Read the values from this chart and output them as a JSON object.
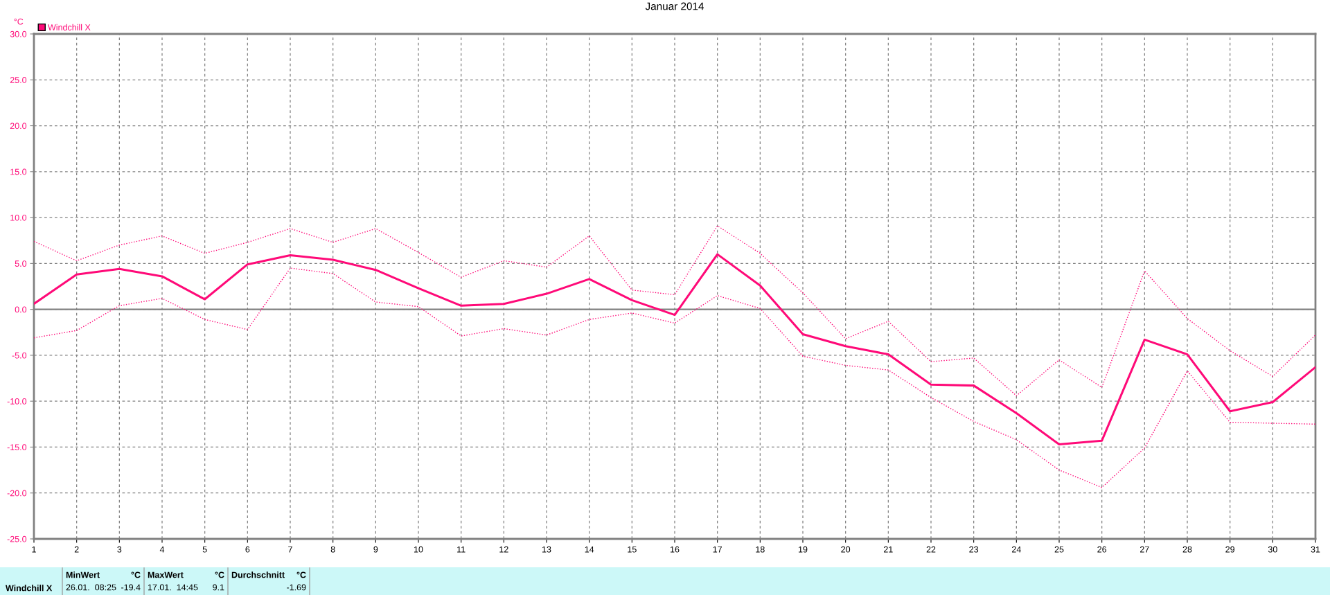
{
  "chart_data": {
    "type": "line",
    "title": "Januar 2014",
    "ylabel": "°C",
    "x": [
      1,
      2,
      3,
      4,
      5,
      6,
      7,
      8,
      9,
      10,
      11,
      12,
      13,
      14,
      15,
      16,
      17,
      18,
      19,
      20,
      21,
      22,
      23,
      24,
      25,
      26,
      27,
      28,
      29,
      30,
      31
    ],
    "series": [
      {
        "name": "Windchill X",
        "color": "#ff0a78",
        "line_style": "solid",
        "values": [
          0.6,
          3.8,
          4.4,
          3.6,
          1.1,
          4.9,
          5.9,
          5.4,
          4.3,
          2.3,
          0.4,
          0.6,
          1.7,
          3.3,
          1.0,
          -0.6,
          6.0,
          2.6,
          -2.7,
          -4.0,
          -4.9,
          -8.2,
          -8.3,
          -11.3,
          -14.7,
          -14.3,
          -3.3,
          -4.9,
          -11.1,
          -10.1,
          -6.3
        ]
      },
      {
        "color": "#ff0a78",
        "line_style": "dotted",
        "values": [
          7.4,
          5.3,
          7.0,
          8.0,
          6.1,
          7.3,
          8.8,
          7.3,
          8.8,
          6.2,
          3.5,
          5.3,
          4.6,
          8.0,
          2.1,
          1.6,
          9.1,
          6.1,
          1.8,
          -3.2,
          -1.3,
          -5.7,
          -5.3,
          -9.4,
          -5.5,
          -8.5,
          4.2,
          -1.0,
          -4.5,
          -7.3,
          -2.8
        ]
      },
      {
        "color": "#ff0a78",
        "line_style": "dotted",
        "values": [
          -3.1,
          -2.3,
          0.4,
          1.2,
          -1.1,
          -2.2,
          4.5,
          3.9,
          0.8,
          0.3,
          -2.9,
          -2.1,
          -2.8,
          -1.1,
          -0.4,
          -1.5,
          1.5,
          0.1,
          -5.1,
          -6.1,
          -6.6,
          -9.6,
          -12.2,
          -14.2,
          -17.5,
          -19.4,
          -15.1,
          -6.7,
          -12.3,
          -12.4,
          -12.5
        ]
      }
    ],
    "xlim": [
      1,
      31
    ],
    "xticks": [
      1,
      2,
      3,
      4,
      5,
      6,
      7,
      8,
      9,
      10,
      11,
      12,
      13,
      14,
      15,
      16,
      17,
      18,
      19,
      20,
      21,
      22,
      23,
      24,
      25,
      26,
      27,
      28,
      29,
      30,
      31
    ],
    "ylim": [
      -25,
      30
    ],
    "yticks": [
      {
        "value": -25,
        "label": "-25.0"
      },
      {
        "value": -20,
        "label": "-20.0"
      },
      {
        "value": -15,
        "label": "-15.0"
      },
      {
        "value": -10,
        "label": "-10.0"
      },
      {
        "value": -5,
        "label": "-5.0"
      },
      {
        "value": 0,
        "label": "0.0"
      },
      {
        "value": 5,
        "label": "5.0"
      },
      {
        "value": 10,
        "label": "10.0"
      },
      {
        "value": 15,
        "label": "15.0"
      },
      {
        "value": 20,
        "label": "20.0"
      },
      {
        "value": 25,
        "label": "25.0"
      },
      {
        "value": 30,
        "label": "30.0"
      }
    ],
    "ref_lines": [
      {
        "axis": "y",
        "value": 0,
        "color": "#808080"
      }
    ],
    "grid": true,
    "legend": "top left",
    "marker": "none",
    "annotations": [
      "Windchill X",
      "MinWert",
      "°C",
      "26.01.  08:25",
      "-19.4",
      "MaxWert",
      "°C",
      "17.01.  14:45",
      "9.1",
      "Durchschnitt",
      "°C",
      "-1.69"
    ]
  }
}
